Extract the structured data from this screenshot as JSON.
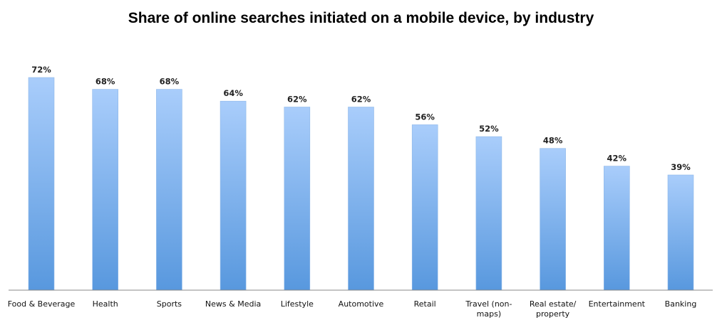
{
  "chart_data": {
    "type": "bar",
    "title": "Share of online searches initiated on a mobile device, by industry",
    "categories": [
      [
        "Food & Beverage"
      ],
      [
        "Health"
      ],
      [
        "Sports"
      ],
      [
        "News & Media"
      ],
      [
        "Lifestyle"
      ],
      [
        "Automotive"
      ],
      [
        "Retail"
      ],
      [
        "Travel (non-",
        "maps)"
      ],
      [
        "Real estate/",
        "property"
      ],
      [
        "Entertainment"
      ],
      [
        "Banking"
      ]
    ],
    "values": [
      72,
      68,
      68,
      64,
      62,
      62,
      56,
      52,
      48,
      42,
      39
    ],
    "value_labels": [
      "72%",
      "68%",
      "68%",
      "64%",
      "62%",
      "62%",
      "56%",
      "52%",
      "48%",
      "42%",
      "39%"
    ],
    "unit": "%",
    "ylim": [
      0,
      72
    ],
    "xlabel": "",
    "ylabel": "",
    "grid": false,
    "legend": "none",
    "colors": {
      "bar_top": "#a9cdfb",
      "bar_bottom": "#5898de",
      "bar_edge": "#8fb8e8",
      "axis": "#888888"
    }
  }
}
